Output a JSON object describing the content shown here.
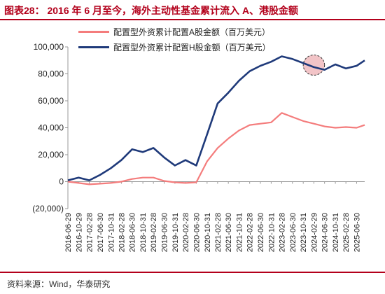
{
  "header": {
    "title": "图表28：  2016 年 6 月至今，海外主动性基金累计流入 A、港股金额"
  },
  "footer": {
    "source": "资料来源：Wind，华泰研究"
  },
  "colors": {
    "accent": "#b3001b",
    "series_a": "#f47c7c",
    "series_h": "#1f3a7a",
    "highlight_fill": "#f2c4c7"
  },
  "chart_data": {
    "type": "line",
    "title": "",
    "xlabel": "",
    "ylabel": "",
    "ylim": [
      -20000,
      100000
    ],
    "yticks": [
      -20000,
      0,
      20000,
      40000,
      60000,
      80000,
      100000
    ],
    "ytick_labels": [
      "(20,000)",
      "0",
      "20,000",
      "40,000",
      "60,000",
      "80,000",
      "100,000"
    ],
    "xlim": [
      "2016-06-29",
      "2025-09-30"
    ],
    "xtick_labels": [
      "2016-06-29",
      "2016-10-29",
      "2017-02-28",
      "2017-06-30",
      "2017-10-31",
      "2018-02-28",
      "2018-06-30",
      "2018-10-31",
      "2019-02-28",
      "2019-06-30",
      "2019-10-31",
      "2020-02-28",
      "2020-06-30",
      "2020-10-31",
      "2021-02-28",
      "2021-06-30",
      "2021-10-31",
      "2022-02-28",
      "2022-06-30",
      "2022-10-31",
      "2023-02-28",
      "2023-06-30",
      "2023-10-31",
      "2024-02-29",
      "2024-06-30",
      "2024-10-31",
      "2025-02-28",
      "2025-06-30"
    ],
    "grid": false,
    "legend_position": "top-left",
    "series": [
      {
        "name": "配置型外资累计配置A股金额（百万美元）",
        "x": [
          "2016-06-29",
          "2016-10-29",
          "2017-02-28",
          "2017-06-30",
          "2017-10-31",
          "2018-02-28",
          "2018-06-30",
          "2018-10-31",
          "2019-02-28",
          "2019-06-30",
          "2019-10-31",
          "2020-02-28",
          "2020-06-30",
          "2020-10-31",
          "2021-02-28",
          "2021-06-30",
          "2021-10-31",
          "2022-02-28",
          "2022-06-30",
          "2022-10-31",
          "2023-02-28",
          "2023-06-30",
          "2023-10-31",
          "2024-02-29",
          "2024-06-30",
          "2024-10-31",
          "2025-02-28",
          "2025-06-30",
          "2025-09-30"
        ],
        "values": [
          0,
          -1000,
          -2000,
          -1500,
          -1000,
          0,
          2000,
          3000,
          3000,
          500,
          -500,
          -1000,
          -500,
          15000,
          25000,
          32000,
          38000,
          42000,
          43000,
          44000,
          51000,
          48000,
          45000,
          43000,
          41000,
          40000,
          40500,
          40000,
          42000
        ]
      },
      {
        "name": "配置型外资累计配置H股金额（百万美元）",
        "x": [
          "2016-06-29",
          "2016-10-29",
          "2017-02-28",
          "2017-06-30",
          "2017-10-31",
          "2018-02-28",
          "2018-06-30",
          "2018-10-31",
          "2019-02-28",
          "2019-06-30",
          "2019-10-31",
          "2020-02-28",
          "2020-06-30",
          "2020-10-31",
          "2021-02-28",
          "2021-06-30",
          "2021-10-31",
          "2022-02-28",
          "2022-06-30",
          "2022-10-31",
          "2023-02-28",
          "2023-06-30",
          "2023-10-31",
          "2024-02-29",
          "2024-06-30",
          "2024-10-31",
          "2025-02-28",
          "2025-06-30",
          "2025-09-30"
        ],
        "values": [
          1000,
          3000,
          1000,
          5000,
          10000,
          16000,
          24000,
          22000,
          25000,
          18000,
          12000,
          16000,
          12000,
          35000,
          58000,
          66000,
          75000,
          82000,
          86000,
          89000,
          93000,
          91000,
          88000,
          85000,
          83000,
          87000,
          84000,
          86000,
          90000
        ]
      }
    ],
    "annotations": [
      {
        "type": "ellipse",
        "x": "2024-02-29",
        "y": 86000,
        "x_from": "2023-10-31",
        "x_to": "2024-06-30",
        "y_from": 79000,
        "y_to": 94000
      }
    ]
  }
}
